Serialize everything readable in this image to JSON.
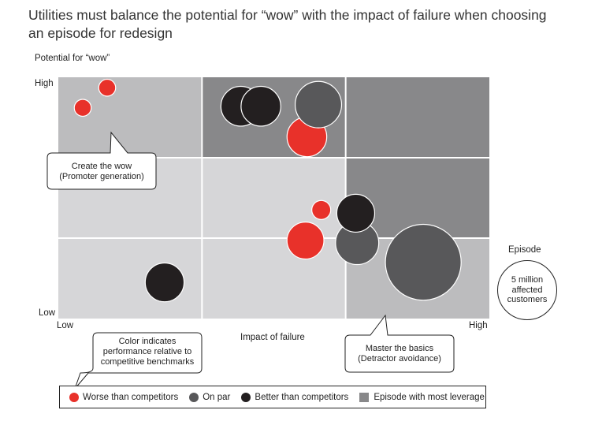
{
  "title": "Utilities must balance the potential for “wow” with the impact of failure when choosing an episode for redesign",
  "colors": {
    "worse": "#e8312a",
    "on_par": "#58585a",
    "better": "#231f20",
    "cell_light": "#d6d6d8",
    "cell_mid": "#bcbcbe",
    "cell_dark": "#88888a"
  },
  "chart_data": {
    "type": "scatter",
    "title": "Utilities must balance the potential for “wow” with the impact of failure when choosing an episode for redesign",
    "xlabel": "Impact of failure",
    "ylabel": "Potential for “wow”",
    "x_ticks": {
      "low": "Low",
      "high": "High"
    },
    "y_ticks": {
      "low": "Low",
      "high": "High"
    },
    "xlim": [
      0,
      3
    ],
    "ylim": [
      0,
      3
    ],
    "grid": "3x3",
    "leverage_cells": [
      {
        "col": 1,
        "row": 2
      },
      {
        "col": 2,
        "row": 2
      },
      {
        "col": 2,
        "row": 1
      },
      {
        "col": 2,
        "row": 0
      }
    ],
    "size_reference": {
      "label": "Episode",
      "value_millions": 5,
      "text": "5 million affected customers"
    },
    "points": [
      {
        "x": 0.17,
        "y": 2.62,
        "size_millions": 0.4,
        "performance": "worse"
      },
      {
        "x": 0.34,
        "y": 2.87,
        "size_millions": 0.4,
        "performance": "worse"
      },
      {
        "x": 0.74,
        "y": 0.45,
        "size_millions": 2.1,
        "performance": "better"
      },
      {
        "x": 1.27,
        "y": 2.64,
        "size_millions": 2.2,
        "performance": "better"
      },
      {
        "x": 1.41,
        "y": 2.64,
        "size_millions": 2.2,
        "performance": "better"
      },
      {
        "x": 1.73,
        "y": 2.26,
        "size_millions": 2.2,
        "performance": "worse"
      },
      {
        "x": 1.81,
        "y": 2.66,
        "size_millions": 3.0,
        "performance": "on_par"
      },
      {
        "x": 1.72,
        "y": 0.97,
        "size_millions": 1.9,
        "performance": "worse"
      },
      {
        "x": 1.83,
        "y": 1.35,
        "size_millions": 0.5,
        "performance": "worse"
      },
      {
        "x": 2.08,
        "y": 0.94,
        "size_millions": 2.6,
        "performance": "on_par"
      },
      {
        "x": 2.07,
        "y": 1.31,
        "size_millions": 2.0,
        "performance": "better"
      },
      {
        "x": 2.54,
        "y": 0.7,
        "size_millions": 8.0,
        "performance": "on_par"
      }
    ],
    "legend": [
      {
        "key": "worse",
        "label": "Worse than competitors"
      },
      {
        "key": "on_par",
        "label": "On par"
      },
      {
        "key": "better",
        "label": "Better than competitors"
      },
      {
        "key": "leverage",
        "label": "Episode with most leverage"
      }
    ]
  },
  "callouts": {
    "create_wow": "Create the wow (Promoter generation)",
    "create_wow_l1": "Create the wow",
    "create_wow_l2": "(Promoter generation)",
    "master_basics_l1": "Master the basics",
    "master_basics_l2": "(Detractor avoidance)",
    "color_note_l1": "Color indicates",
    "color_note_l2": "performance relative to",
    "color_note_l3": "competitive benchmarks"
  },
  "episode_key": {
    "label": "Episode",
    "l1": "5 million",
    "l2": "affected",
    "l3": "customers"
  }
}
